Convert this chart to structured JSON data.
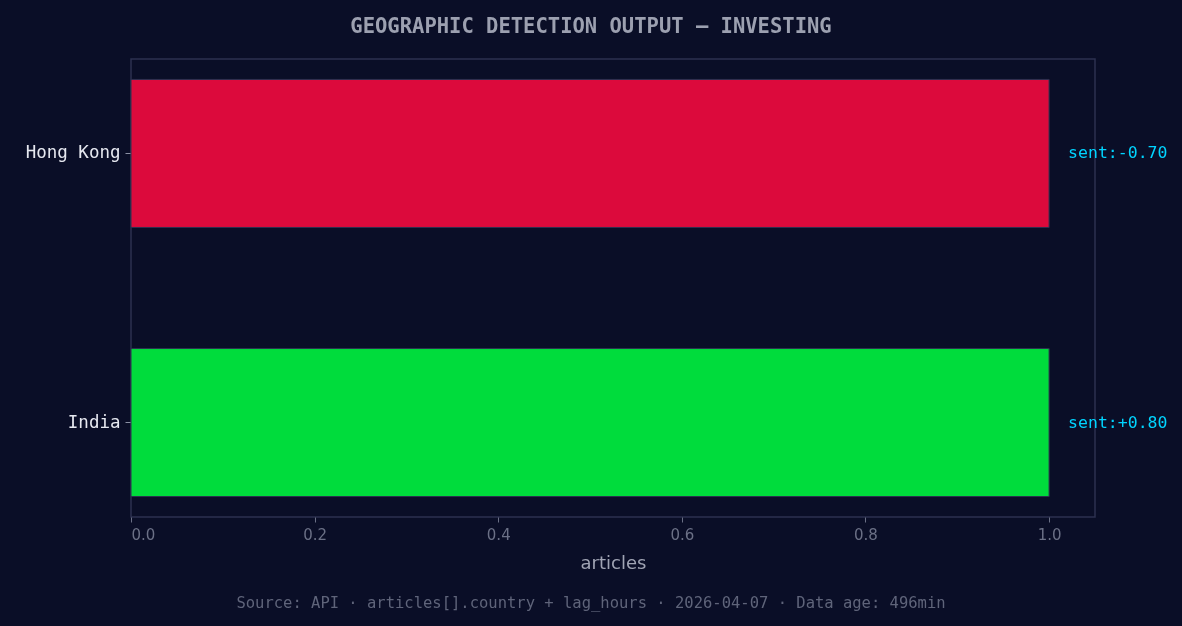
{
  "chart_data": {
    "type": "bar",
    "orientation": "horizontal",
    "title": "GEOGRAPHIC DETECTION OUTPUT — INVESTING",
    "xlabel": "articles",
    "categories": [
      "Hong Kong",
      "India"
    ],
    "values": [
      1.0,
      1.0
    ],
    "colors": [
      "#dc0a3c",
      "#00dc3c"
    ],
    "xlim": [
      0,
      1.05
    ],
    "xticks": [
      {
        "value": 0,
        "label": "0.0"
      },
      0.2,
      0.4,
      0.6,
      0.8,
      {
        "value": 1,
        "label": "1.0"
      }
    ],
    "annotations": [
      {
        "text": "sent:-0.70",
        "x": 1.0,
        "y": "Hong Kong"
      },
      {
        "text": "sent:+0.80",
        "x": 1.0,
        "y": "India"
      },
      "Source: API · articles[].country + lag_hours · 2026-04-07 · Data age: 496min"
    ]
  }
}
